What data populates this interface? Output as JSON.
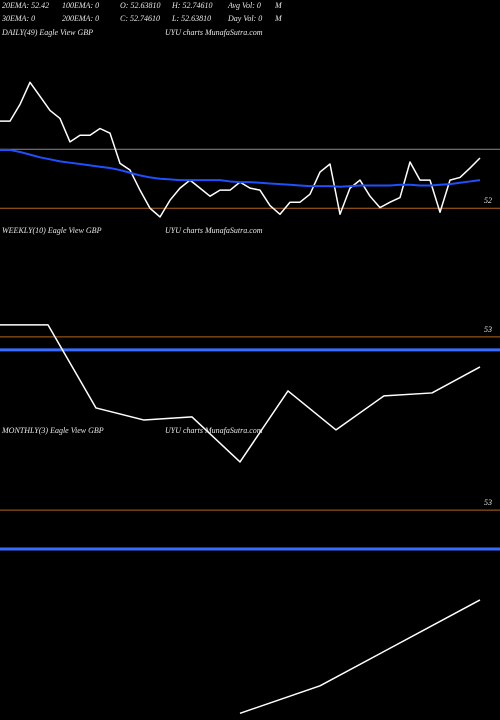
{
  "header": {
    "row1": [
      "20EMA: 52.42",
      "100EMA: 0",
      "O: 52.63810",
      "H: 52.74610",
      "Avg Vol: 0",
      "M"
    ],
    "row2": [
      "30EMA: 0",
      "200EMA: 0",
      "C: 52.74610",
      "L: 52.63810",
      "Day Vol: 0",
      "M"
    ]
  },
  "chart_data": [
    {
      "type": "line",
      "title": "DAILY(49) Eagle View GBP",
      "subtitle": "UYU charts MunafaSutra.com",
      "categories": [
        null,
        null,
        null,
        null,
        null,
        null,
        null,
        null,
        null,
        null,
        null,
        null,
        null,
        null,
        null,
        null,
        null,
        null,
        null,
        null,
        null,
        null,
        null,
        null,
        null,
        null,
        null,
        null,
        null,
        null,
        null,
        null,
        null,
        null,
        null,
        null,
        null,
        null,
        null,
        null,
        null,
        null,
        null,
        null,
        null,
        null,
        null,
        null,
        null
      ],
      "series": [
        {
          "color": "#ffffff",
          "width": 1.5,
          "values": [
            53.3,
            53.3,
            53.55,
            53.88,
            53.67,
            53.46,
            53.34,
            52.99,
            53.09,
            53.09,
            53.19,
            53.12,
            52.67,
            52.57,
            52.27,
            52.0,
            51.87,
            52.12,
            52.3,
            52.42,
            52.3,
            52.18,
            52.27,
            52.27,
            52.39,
            52.3,
            52.27,
            52.04,
            51.91,
            52.09,
            52.09,
            52.21,
            52.54,
            52.66,
            51.91,
            52.3,
            52.42,
            52.18,
            52.01,
            52.09,
            52.16,
            52.69,
            52.42,
            52.42,
            51.94,
            52.42,
            52.46,
            52.6,
            52.75
          ]
        },
        {
          "color": "#1f4fff",
          "width": 2,
          "values": [
            52.87,
            52.87,
            52.84,
            52.8,
            52.76,
            52.73,
            52.7,
            52.68,
            52.66,
            52.64,
            52.62,
            52.6,
            52.57,
            52.53,
            52.49,
            52.46,
            52.44,
            52.43,
            52.42,
            52.42,
            52.42,
            52.42,
            52.42,
            52.4,
            52.39,
            52.39,
            52.38,
            52.37,
            52.36,
            52.35,
            52.34,
            52.33,
            52.33,
            52.33,
            52.32,
            52.33,
            52.34,
            52.34,
            52.34,
            52.34,
            52.35,
            52.35,
            52.34,
            52.34,
            52.35,
            52.36,
            52.38,
            52.4,
            52.42
          ]
        }
      ],
      "hlines": [
        {
          "value": 52.88,
          "color": "#8a8a8a",
          "width": 1
        }
      ],
      "ylim": [
        51.75,
        54.66
      ],
      "yticks": [
        52
      ],
      "tick_color": "#b5651d"
    },
    {
      "type": "line",
      "title": "WEEKLY(10) Eagle View GBP",
      "subtitle": "UYU charts MunafaSutra.com",
      "categories": [
        null,
        null,
        null,
        null,
        null,
        null,
        null,
        null,
        null,
        null,
        null
      ],
      "series": [
        {
          "color": "#ffffff",
          "width": 1.5,
          "values": [
            53.54,
            53.54,
            49.83,
            49.29,
            49.43,
            47.42,
            50.59,
            48.85,
            50.37,
            50.5,
            51.66
          ]
        }
      ],
      "hlines": [
        {
          "value": 52.42,
          "color": "#3a6bff",
          "width": 3
        }
      ],
      "ylim": [
        47.06,
        57.55
      ],
      "yticks": [
        53
      ],
      "tick_color": "#b5651d"
    },
    {
      "type": "line",
      "title": "MONTHLY(3) Eagle View GBP",
      "subtitle": "UYU charts MunafaSutra.com",
      "categories": [
        null,
        null,
        null,
        null,
        null,
        null,
        null
      ],
      "series": [
        {
          "color": "#ffffff",
          "width": 1.5,
          "values": [
            null,
            null,
            null,
            49.97,
            50.38,
            51.02,
            51.66
          ]
        }
      ],
      "hlines": [
        {
          "value": 52.42,
          "color": "#3a6bff",
          "width": 3
        }
      ],
      "ylim": [
        49.87,
        54.12
      ],
      "yticks": [
        53
      ],
      "tick_color": "#b5651d"
    }
  ]
}
